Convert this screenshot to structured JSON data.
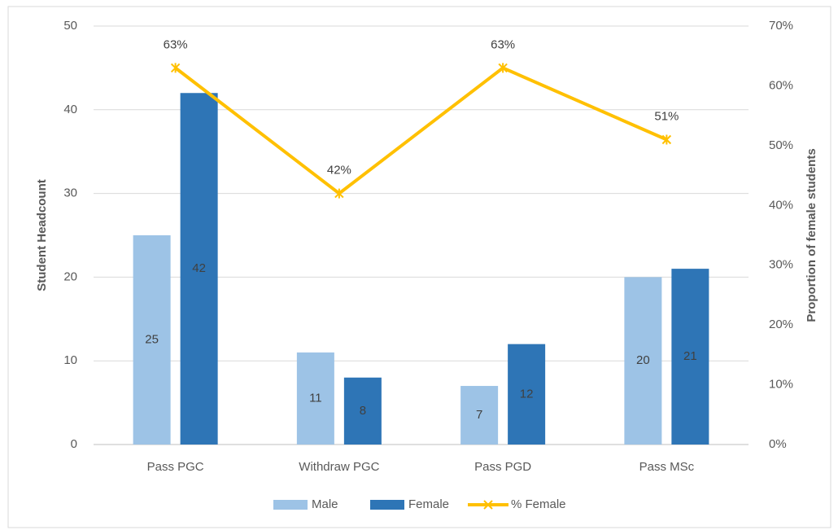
{
  "chart_data": {
    "type": "bar",
    "categories": [
      "Pass PGC",
      "Withdraw PGC",
      "Pass PGD",
      "Pass MSc"
    ],
    "series": [
      {
        "name": "Male",
        "color": "#9dc3e6",
        "values": [
          25,
          11,
          7,
          20
        ]
      },
      {
        "name": "Female",
        "color": "#2e75b6",
        "values": [
          42,
          8,
          12,
          21
        ]
      },
      {
        "name": "% Female",
        "color": "#ffc000",
        "type": "line",
        "axis": "y2",
        "values": [
          63,
          42,
          63,
          51
        ],
        "value_labels": [
          "63%",
          "42%",
          "63%",
          "51%"
        ]
      }
    ],
    "ylabel": "Student Headcount",
    "y2label": "Proportion of female students",
    "ylim": [
      0,
      50
    ],
    "yticks": [
      0,
      10,
      20,
      30,
      40,
      50
    ],
    "y2lim": [
      0,
      70
    ],
    "y2ticks": [
      {
        "value": 0,
        "label": "0%"
      },
      {
        "value": 10,
        "label": "10%"
      },
      {
        "value": 20,
        "label": "20%"
      },
      {
        "value": 30,
        "label": "30%"
      },
      {
        "value": 40,
        "label": "40%"
      },
      {
        "value": 50,
        "label": "50%"
      },
      {
        "value": 60,
        "label": "60%"
      },
      {
        "value": 70,
        "label": "70%"
      }
    ],
    "grid": true,
    "legend": "bottom"
  }
}
